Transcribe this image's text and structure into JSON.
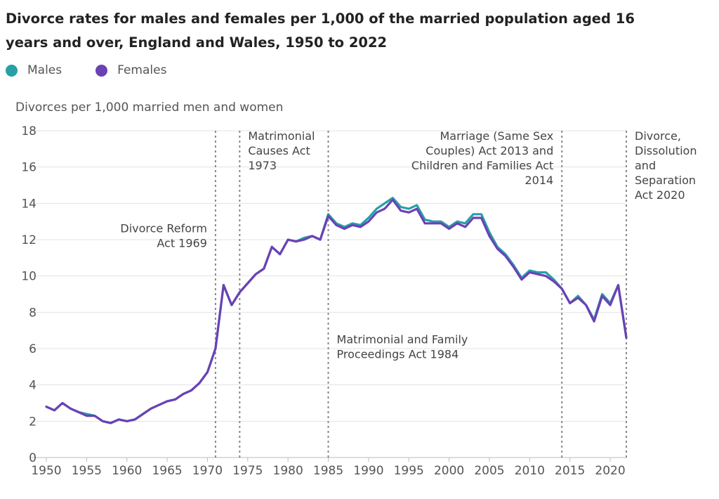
{
  "chart_data": {
    "type": "line",
    "title": "Divorce rates for males and females per 1,000 of the married population aged 16 years and over, England and Wales, 1950 to 2022",
    "ylabel": "Divorces per 1,000 married men and women",
    "xlabel": "",
    "xlim": [
      1950,
      2022
    ],
    "ylim": [
      0,
      18
    ],
    "yticks": [
      0,
      2,
      4,
      6,
      8,
      10,
      12,
      14,
      16,
      18
    ],
    "xticks": [
      1950,
      1955,
      1960,
      1965,
      1970,
      1975,
      1980,
      1985,
      1990,
      1995,
      2000,
      2005,
      2010,
      2015,
      2020
    ],
    "grid": true,
    "legend_position": "top-left",
    "x": [
      1950,
      1951,
      1952,
      1953,
      1954,
      1955,
      1956,
      1957,
      1958,
      1959,
      1960,
      1961,
      1962,
      1963,
      1964,
      1965,
      1966,
      1967,
      1968,
      1969,
      1970,
      1971,
      1972,
      1973,
      1974,
      1975,
      1976,
      1977,
      1978,
      1979,
      1980,
      1981,
      1982,
      1983,
      1984,
      1985,
      1986,
      1987,
      1988,
      1989,
      1990,
      1991,
      1992,
      1993,
      1994,
      1995,
      1996,
      1997,
      1998,
      1999,
      2000,
      2001,
      2002,
      2003,
      2004,
      2005,
      2006,
      2007,
      2008,
      2009,
      2010,
      2011,
      2012,
      2013,
      2014,
      2015,
      2016,
      2017,
      2018,
      2019,
      2020,
      2021,
      2022
    ],
    "series": [
      {
        "name": "Males",
        "color": "#27a0a6",
        "values": [
          2.8,
          2.6,
          3.0,
          2.7,
          2.5,
          2.4,
          2.3,
          2.0,
          1.9,
          2.1,
          2.0,
          2.1,
          2.4,
          2.7,
          2.9,
          3.1,
          3.2,
          3.5,
          3.7,
          4.1,
          4.7,
          6.0,
          9.5,
          8.4,
          9.1,
          9.6,
          10.1,
          10.4,
          11.6,
          11.2,
          12.0,
          11.9,
          12.1,
          12.2,
          12.0,
          13.4,
          12.9,
          12.7,
          12.9,
          12.8,
          13.2,
          13.7,
          14.0,
          14.3,
          13.8,
          13.7,
          13.9,
          13.1,
          13.0,
          13.0,
          12.7,
          13.0,
          12.9,
          13.4,
          13.4,
          12.4,
          11.6,
          11.2,
          10.6,
          9.9,
          10.3,
          10.2,
          10.2,
          9.8,
          9.3,
          8.5,
          8.9,
          8.4,
          7.6,
          9.0,
          8.5,
          9.5,
          6.6
        ]
      },
      {
        "name": "Females",
        "color": "#6b41b5",
        "values": [
          2.8,
          2.6,
          3.0,
          2.7,
          2.5,
          2.3,
          2.3,
          2.0,
          1.9,
          2.1,
          2.0,
          2.1,
          2.4,
          2.7,
          2.9,
          3.1,
          3.2,
          3.5,
          3.7,
          4.1,
          4.7,
          6.0,
          9.5,
          8.4,
          9.1,
          9.6,
          10.1,
          10.4,
          11.6,
          11.2,
          12.0,
          11.9,
          12.0,
          12.2,
          12.0,
          13.3,
          12.8,
          12.6,
          12.8,
          12.7,
          13.0,
          13.5,
          13.7,
          14.2,
          13.6,
          13.5,
          13.7,
          12.9,
          12.9,
          12.9,
          12.6,
          12.9,
          12.7,
          13.2,
          13.2,
          12.2,
          11.5,
          11.1,
          10.5,
          9.8,
          10.2,
          10.1,
          10.0,
          9.7,
          9.3,
          8.5,
          8.8,
          8.4,
          7.5,
          8.9,
          8.4,
          9.5,
          6.6
        ]
      }
    ],
    "annotations": [
      {
        "x": 1971,
        "lines": [
          "Divorce Reform",
          "Act 1969"
        ],
        "side": "left",
        "y": 12.4
      },
      {
        "x": 1974,
        "lines": [
          "Matrimonial",
          "Causes Act",
          "1973"
        ],
        "side": "right",
        "y": 17.5
      },
      {
        "x": 1985,
        "lines": [
          "Matrimonial and Family",
          "Proceedings Act 1984"
        ],
        "side": "right",
        "y": 6.3
      },
      {
        "x": 2014,
        "lines": [
          "Marriage (Same Sex",
          "Couples) Act 2013 and",
          "Children and Families Act",
          "2014"
        ],
        "side": "left",
        "y": 17.5
      },
      {
        "x": 2022,
        "lines": [
          "Divorce,",
          "Dissolution",
          "and",
          "Separation",
          "Act 2020"
        ],
        "side": "right",
        "y": 17.5
      }
    ]
  }
}
